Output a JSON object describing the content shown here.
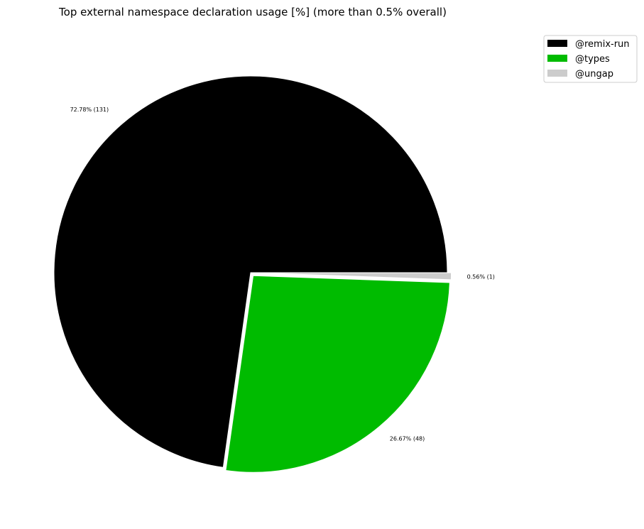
{
  "chart_data": {
    "type": "pie",
    "title": "Top external namespace declaration usage [%] (more than 0.5% overall)",
    "slices": [
      {
        "name": "@remix-run",
        "percent": 72.78,
        "count": 131,
        "label": "72.78% (131)",
        "color": "#000000"
      },
      {
        "name": "@types",
        "percent": 26.67,
        "count": 48,
        "label": "26.67% (48)",
        "color": "#00bb00"
      },
      {
        "name": "@ungap",
        "percent": 0.56,
        "count": 1,
        "label": "0.56% (1)",
        "color": "#cccccc"
      }
    ],
    "start_angle": "0° (3 o'clock)",
    "direction": "counterclockwise",
    "exploded": [
      "@types",
      "@ungap"
    ],
    "legend_position": "top-right"
  }
}
